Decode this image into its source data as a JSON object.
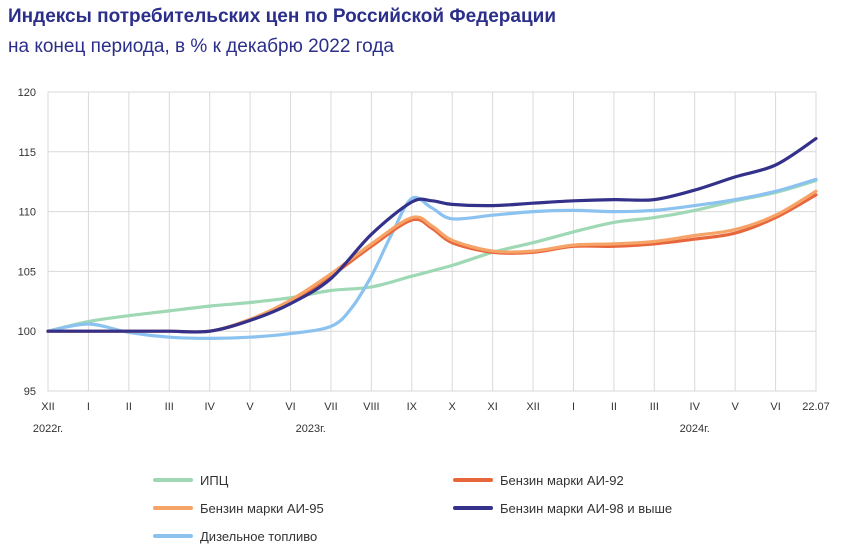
{
  "title": "Индексы потребительских цен по Российской Федерации",
  "subtitle": "на конец периода, в % к декабрю 2022 года",
  "chart_data": {
    "type": "line",
    "title": "Индексы потребительских цен по Российской Федерации",
    "subtitle": "на конец периода, в % к декабрю 2022 года",
    "xlabel": "",
    "ylabel": "",
    "ylim": [
      95,
      120
    ],
    "yticks": [
      95,
      100,
      105,
      110,
      115,
      120
    ],
    "grid": true,
    "legend_position": "bottom",
    "x_tick_labels": [
      "XII",
      "I",
      "II",
      "III",
      "IV",
      "V",
      "VI",
      "VII",
      "VIII",
      "IX",
      "X",
      "XI",
      "XII",
      "I",
      "II",
      "III",
      "IV",
      "V",
      "VI",
      "22.07"
    ],
    "year_labels": [
      {
        "label": "2022г.",
        "index": 0
      },
      {
        "label": "2023г.",
        "index": 6.5
      },
      {
        "label": "2024г.",
        "index": 16
      }
    ],
    "series": [
      {
        "name": "ИПЦ",
        "color": "#9fd8b4",
        "x": [
          0,
          1,
          2,
          3,
          4,
          5,
          6,
          7,
          8,
          9,
          10,
          11,
          12,
          13,
          14,
          15,
          16,
          17,
          18,
          19
        ],
        "values": [
          100,
          100.8,
          101.3,
          101.7,
          102.1,
          102.4,
          102.8,
          103.4,
          103.7,
          104.6,
          105.5,
          106.6,
          107.4,
          108.3,
          109.1,
          109.5,
          110.1,
          110.9,
          111.6,
          112.6
        ]
      },
      {
        "name": "Бензин марки АИ-92",
        "color": "#e8663c",
        "x": [
          0,
          1,
          2,
          3,
          4,
          5,
          6,
          7,
          8,
          9,
          9.5,
          10,
          11,
          12,
          13,
          14,
          15,
          16,
          17,
          18,
          19
        ],
        "values": [
          100,
          100,
          100,
          100,
          100,
          100.9,
          102.4,
          104.6,
          107.1,
          109.3,
          108.6,
          107.4,
          106.6,
          106.6,
          107.1,
          107.1,
          107.3,
          107.7,
          108.2,
          109.5,
          111.4
        ]
      },
      {
        "name": "Бензин марки АИ-95",
        "color": "#f6a367",
        "x": [
          0,
          1,
          2,
          3,
          4,
          5,
          6,
          7,
          8,
          9,
          9.5,
          10,
          11,
          12,
          13,
          14,
          15,
          16,
          17,
          18,
          19
        ],
        "values": [
          100,
          100,
          100,
          100,
          100,
          101,
          102.6,
          104.8,
          107.3,
          109.5,
          108.8,
          107.6,
          106.7,
          106.7,
          107.2,
          107.3,
          107.5,
          108,
          108.5,
          109.7,
          111.7
        ]
      },
      {
        "name": "Бензин марки АИ-98 и выше",
        "color": "#34318b",
        "x": [
          0,
          1,
          2,
          3,
          4,
          5,
          6,
          7,
          8,
          9,
          9.5,
          10,
          11,
          12,
          13,
          14,
          15,
          16,
          17,
          18,
          19
        ],
        "values": [
          100,
          100,
          100,
          100,
          100,
          100.9,
          102.3,
          104.4,
          108.1,
          110.8,
          110.9,
          110.6,
          110.5,
          110.7,
          110.9,
          111,
          111,
          111.8,
          112.9,
          113.9,
          116.1
        ]
      },
      {
        "name": "Дизельное топливо",
        "color": "#8bc2f0",
        "x": [
          0,
          1,
          2,
          3,
          4,
          5,
          6,
          7,
          7.5,
          8,
          8.5,
          9,
          9.5,
          10,
          11,
          12,
          13,
          14,
          15,
          16,
          17,
          18,
          19
        ],
        "values": [
          100,
          100.6,
          99.9,
          99.5,
          99.4,
          99.5,
          99.8,
          100.4,
          101.9,
          104.6,
          108.1,
          111.1,
          110.3,
          109.4,
          109.7,
          110,
          110.1,
          110,
          110.1,
          110.5,
          111,
          111.7,
          112.7
        ]
      }
    ]
  }
}
